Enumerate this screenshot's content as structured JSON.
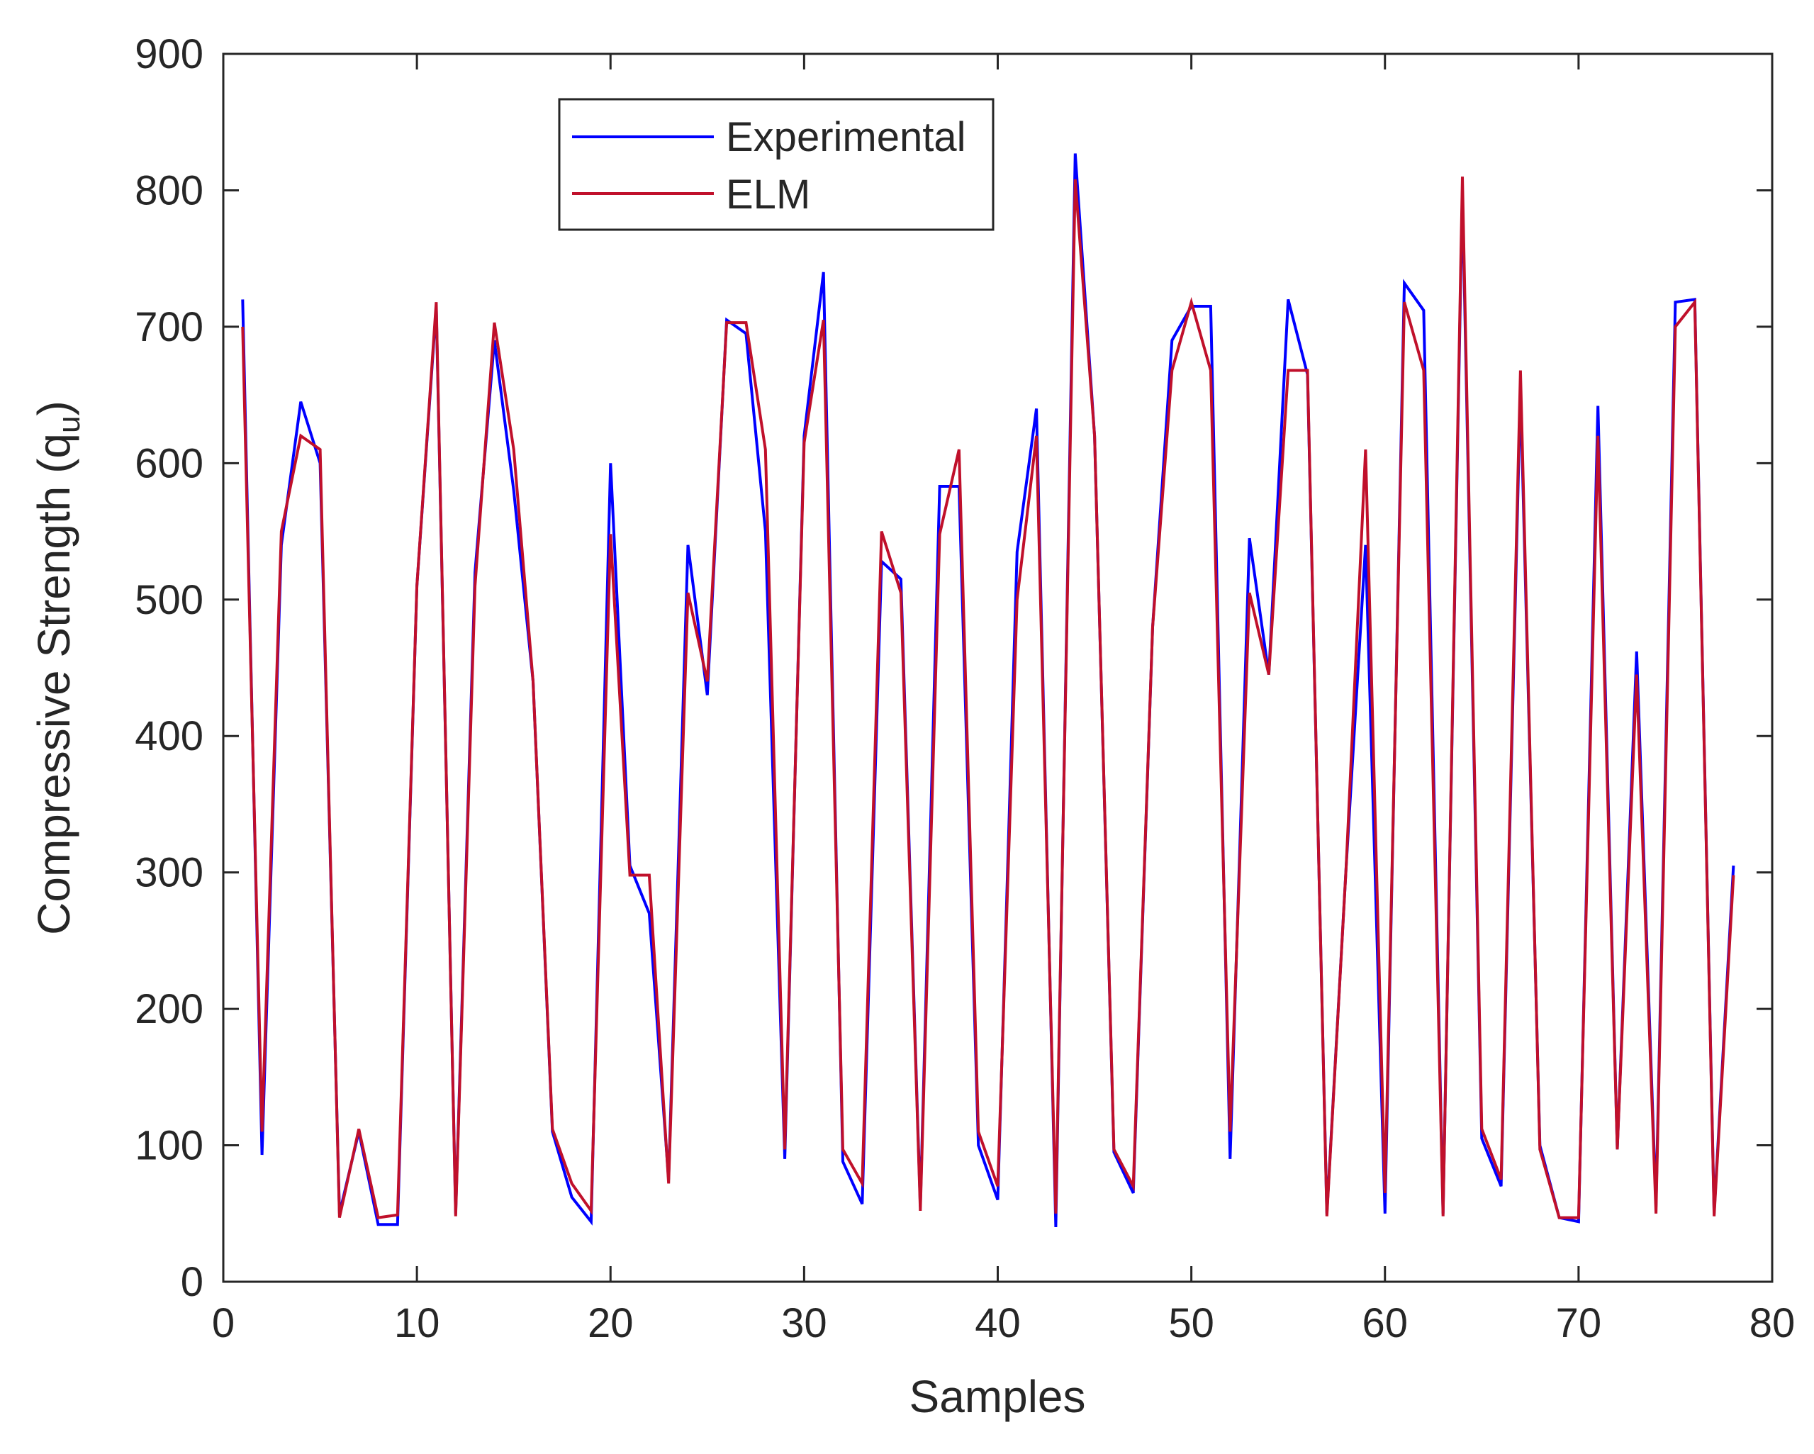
{
  "chart_data": {
    "type": "line",
    "title": "",
    "xlabel": "Samples",
    "ylabel_main": "Compressive Strength (q",
    "ylabel_sub": "u",
    "ylabel_close": ")",
    "xlim": [
      0,
      80
    ],
    "ylim": [
      0,
      900
    ],
    "xticks": [
      0,
      10,
      20,
      30,
      40,
      50,
      60,
      70,
      80
    ],
    "yticks": [
      0,
      100,
      200,
      300,
      400,
      500,
      600,
      700,
      800,
      900
    ],
    "grid": false,
    "legend_position": "top-center",
    "x": [
      1,
      2,
      3,
      4,
      5,
      6,
      7,
      8,
      9,
      10,
      11,
      12,
      13,
      14,
      15,
      16,
      17,
      18,
      19,
      20,
      21,
      22,
      23,
      24,
      25,
      26,
      27,
      28,
      29,
      30,
      31,
      32,
      33,
      34,
      35,
      36,
      37,
      38,
      39,
      40,
      41,
      42,
      43,
      44,
      45,
      46,
      47,
      48,
      49,
      50,
      51,
      52,
      53,
      54,
      55,
      56,
      57,
      58,
      59,
      60,
      61,
      62,
      63,
      64,
      65,
      66,
      67,
      68,
      69,
      70,
      71,
      72,
      73,
      74,
      75,
      76,
      77,
      78
    ],
    "series": [
      {
        "name": "Experimental",
        "color": "#0000ff",
        "values": [
          720,
          93,
          540,
          645,
          600,
          50,
          110,
          42,
          42,
          510,
          715,
          50,
          520,
          690,
          580,
          440,
          110,
          62,
          44,
          600,
          305,
          270,
          75,
          540,
          430,
          705,
          695,
          550,
          90,
          620,
          740,
          88,
          57,
          528,
          515,
          55,
          583,
          583,
          100,
          60,
          535,
          640,
          40,
          827,
          620,
          95,
          65,
          480,
          690,
          715,
          715,
          90,
          545,
          445,
          720,
          665,
          50,
          305,
          540,
          50,
          732,
          712,
          50,
          800,
          105,
          70,
          655,
          100,
          47,
          44,
          642,
          97,
          462,
          55,
          718,
          720,
          50,
          305
        ]
      },
      {
        "name": "ELM",
        "color": "#c0102b",
        "values": [
          700,
          110,
          550,
          620,
          610,
          47,
          112,
          47,
          49,
          510,
          718,
          48,
          510,
          703,
          610,
          440,
          112,
          72,
          52,
          548,
          298,
          298,
          72,
          505,
          440,
          703,
          703,
          610,
          97,
          615,
          705,
          97,
          72,
          550,
          505,
          52,
          548,
          610,
          110,
          70,
          500,
          620,
          50,
          808,
          620,
          97,
          70,
          480,
          668,
          718,
          668,
          110,
          505,
          445,
          668,
          668,
          48,
          305,
          610,
          65,
          718,
          668,
          48,
          810,
          112,
          75,
          668,
          97,
          47,
          47,
          620,
          97,
          445,
          50,
          700,
          718,
          48,
          298
        ]
      }
    ]
  }
}
